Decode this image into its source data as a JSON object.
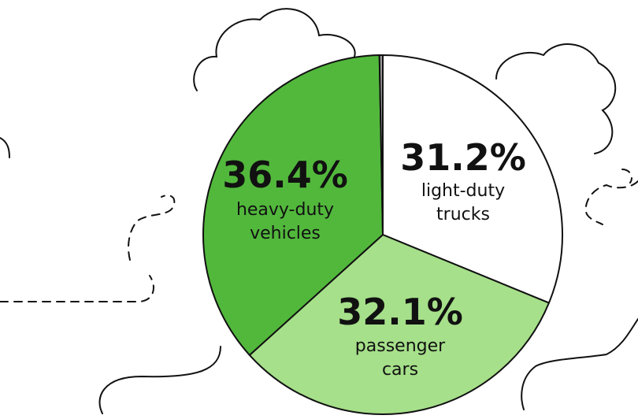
{
  "chart_data": {
    "type": "pie",
    "categories": [
      "light-duty trucks",
      "passenger cars",
      "heavy-duty vehicles",
      null
    ],
    "values": [
      31.2,
      32.1,
      36.4,
      0.3
    ],
    "value_labels": [
      "31.2%",
      "32.1%",
      "36.4%",
      null
    ],
    "colors": [
      "#ffffff",
      "#a6e08a",
      "#52b83c",
      "#9a9a9a"
    ]
  }
}
